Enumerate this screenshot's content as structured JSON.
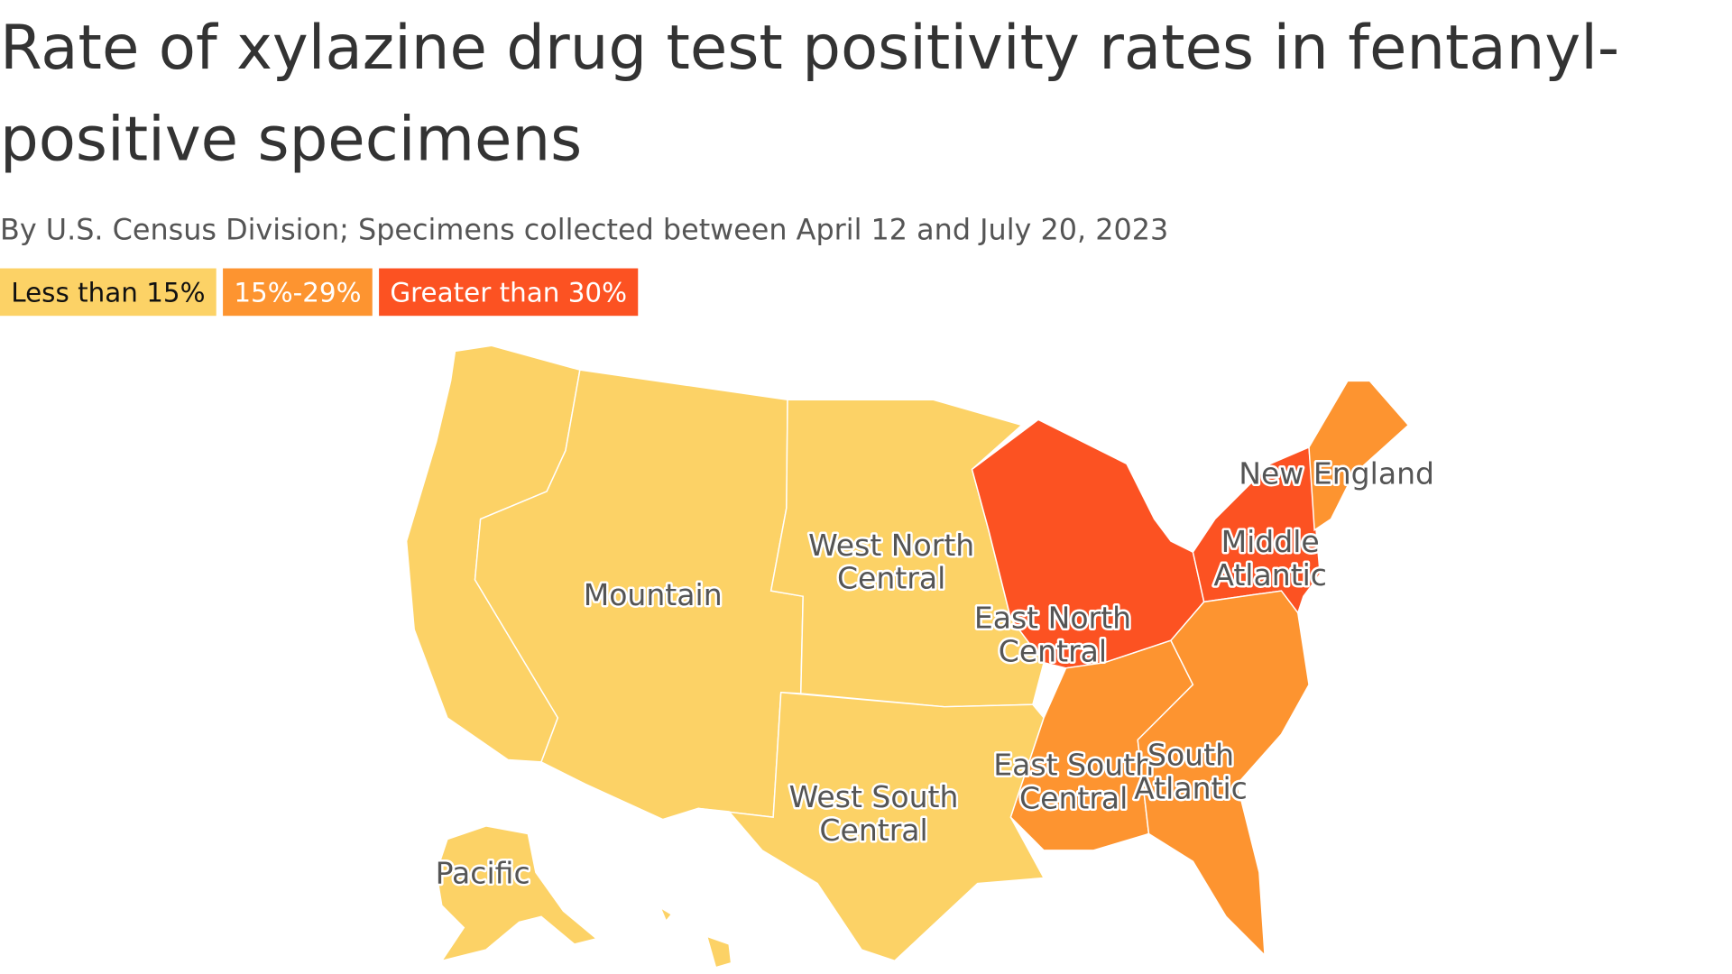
{
  "title": "Rate of xylazine drug test positivity rates in fentanyl-positive specimens",
  "subtitle": "By U.S. Census Division; Specimens collected between April 12 and July 20, 2023",
  "legend": [
    {
      "label": "Less than 15%",
      "color": "#fcd266",
      "text_color": "#111111"
    },
    {
      "label": "15%-29%",
      "color": "#fd9430",
      "text_color": "#ffffff"
    },
    {
      "label": "Greater than 30%",
      "color": "#fc5222",
      "text_color": "#ffffff"
    }
  ],
  "regions": [
    {
      "lines": [
        "Pacific"
      ],
      "category": 0
    },
    {
      "lines": [
        "Mountain"
      ],
      "category": 0
    },
    {
      "lines": [
        "West North",
        "Central"
      ],
      "category": 0
    },
    {
      "lines": [
        "West South",
        "Central"
      ],
      "category": 0
    },
    {
      "lines": [
        "East North",
        "Central"
      ],
      "category": 2
    },
    {
      "lines": [
        "Middle",
        "Atlantic"
      ],
      "category": 2
    },
    {
      "lines": [
        "New England"
      ],
      "category": 1
    },
    {
      "lines": [
        "East South",
        "Central"
      ],
      "category": 1
    },
    {
      "lines": [
        "South",
        "Atlantic"
      ],
      "category": 1
    }
  ]
}
